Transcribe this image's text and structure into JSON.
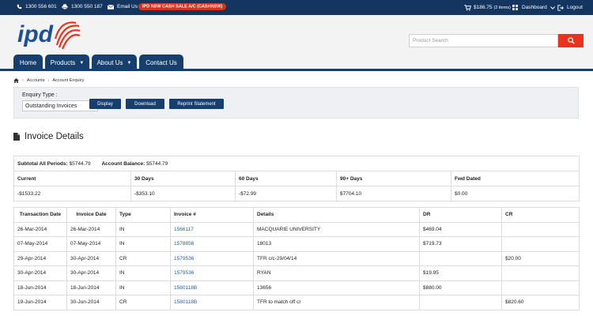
{
  "topbar": {
    "phone1": "1300 556 601",
    "fax": "1300 550 187",
    "email": "Email Us",
    "account_badge": "IPD NSW CASH SALE A/C (CASHNSW)",
    "cart_total": "$186.75",
    "cart_items": "(2 items)",
    "dashboard": "Dashboard",
    "logout": "Logout"
  },
  "header": {
    "logo_text": "ipd",
    "search_placeholder": "Product Search"
  },
  "nav": [
    {
      "label": "Home"
    },
    {
      "label": "Products"
    },
    {
      "label": "About Us"
    },
    {
      "label": "Contact Us"
    }
  ],
  "breadcrumb": [
    "Accounts",
    "Account Enquiry"
  ],
  "enquiry": {
    "label": "Enquiry Type :",
    "selected": "Outstanding Invoices",
    "display_btn": "Display",
    "download_btn": "Download",
    "reprint_btn": "Reprint Statement"
  },
  "section_title": "Invoice Details",
  "summary": {
    "subtotal_label": "Subtotal All Periods:",
    "subtotal_value": "$5744.79",
    "balance_label": "Account Balance:",
    "balance_value": "$5744.79",
    "headers": [
      "Current",
      "30 Days",
      "60 Days",
      "90+ Days",
      "Fwd Dated"
    ],
    "values": [
      "-$1533.22",
      "-$353.10",
      "-$72.99",
      "$7704.10",
      "$0.00"
    ]
  },
  "invoices": {
    "headers": [
      "Transaction Date",
      "Invoice Date",
      "Type",
      "Invoice #",
      "Details",
      "DR",
      "CR"
    ],
    "rows": [
      [
        "26-Mar-2014",
        "26-Mar-2014",
        "IN",
        "1566117",
        "MACQUARIE UNIVERSITY",
        "$469.04",
        ""
      ],
      [
        "07-May-2014",
        "07-May-2014",
        "IN",
        "1578856",
        "18013",
        "$719.73",
        ""
      ],
      [
        "29-Apr-2014",
        "30-Apr-2014",
        "CR",
        "1579536",
        "TFR c/c-29/04/14",
        "",
        "$20.00"
      ],
      [
        "30-Apr-2014",
        "30-Apr-2014",
        "IN",
        "1579536",
        "RYAN",
        "$19.95",
        ""
      ],
      [
        "18-Jun-2014",
        "18-Jun-2014",
        "IN",
        "1580118B",
        "13656",
        "$880.00",
        ""
      ],
      [
        "19-Jun-2014",
        "30-Jun-2014",
        "CR",
        "1580118B",
        "TFR to match off cr",
        "",
        "$820.60"
      ]
    ]
  }
}
